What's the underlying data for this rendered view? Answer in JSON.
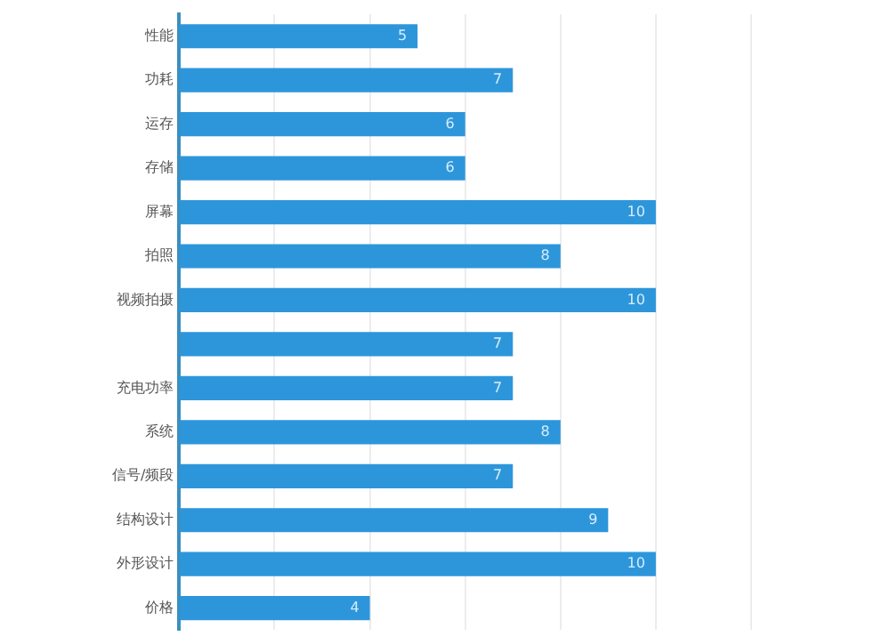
{
  "chart_data": {
    "type": "bar",
    "orientation": "horizontal",
    "categories": [
      "性能",
      "功耗",
      "运存",
      "存储",
      "屏幕",
      "拍照",
      "视频拍摄",
      null,
      "充电功率",
      "系统",
      "信号/频段",
      "结构设计",
      "外形设计",
      "价格"
    ],
    "values": [
      5,
      7,
      6,
      6,
      10,
      8,
      10,
      7,
      7,
      8,
      7,
      9,
      10,
      4
    ],
    "color": "#2d96db",
    "xlim": [
      0,
      12
    ],
    "xticks": [
      {
        "value": 0,
        "label": null
      },
      {
        "value": 2,
        "label": null
      },
      {
        "value": 4,
        "label": null
      },
      {
        "value": 6,
        "label": null
      },
      {
        "value": 8,
        "label": null
      },
      {
        "value": 10,
        "label": null
      },
      {
        "value": 12,
        "label": null
      }
    ],
    "grid": "x",
    "tick_labels": "y",
    "data_labels": true,
    "legend": false
  }
}
